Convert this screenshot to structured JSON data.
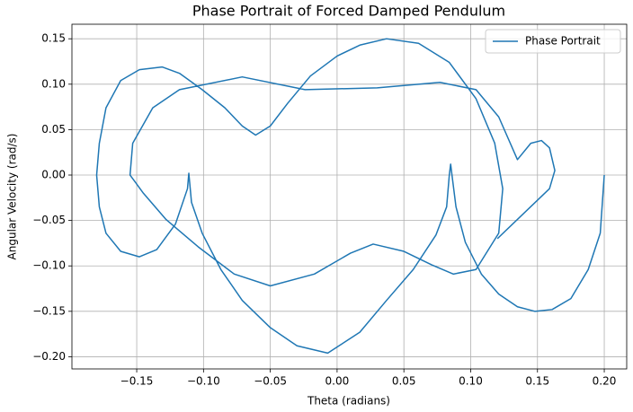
{
  "chart_data": {
    "type": "line",
    "title": "Phase Portrait of Forced Damped Pendulum",
    "x_label": "Theta (radians)",
    "y_label": "Angular Velocity (rad/s)",
    "xlim": [
      -0.1985,
      0.2168
    ],
    "ylim": [
      -0.2134,
      0.166
    ],
    "xticks": [
      {
        "value": -0.15,
        "label": "−0.15"
      },
      {
        "value": -0.1,
        "label": "−0.10"
      },
      {
        "value": -0.05,
        "label": "−0.05"
      },
      {
        "value": 0,
        "label": "0.00"
      },
      {
        "value": 0.05,
        "label": "0.05"
      },
      {
        "value": 0.1,
        "label": "0.10"
      },
      {
        "value": 0.15,
        "label": "0.15"
      },
      {
        "value": 0.2,
        "label": "0.20"
      }
    ],
    "yticks": [
      {
        "value": -0.2,
        "label": "−0.20"
      },
      {
        "value": -0.15,
        "label": "−0.15"
      },
      {
        "value": -0.1,
        "label": "−0.10"
      },
      {
        "value": -0.05,
        "label": "−0.05"
      },
      {
        "value": 0,
        "label": "0.00"
      },
      {
        "value": 0.05,
        "label": "0.05"
      },
      {
        "value": 0.1,
        "label": "0.10"
      },
      {
        "value": 0.15,
        "label": "0.15"
      }
    ],
    "grid": true,
    "legend": "upper right",
    "x": [
      0.2,
      0.197,
      0.188,
      0.175,
      0.161,
      0.148,
      0.135,
      0.121,
      0.108,
      0.096,
      0.089,
      0.086,
      0.085,
      0.084,
      0.082,
      0.074,
      0.057,
      0.037,
      0.017,
      -0.007,
      -0.03,
      -0.05,
      -0.071,
      -0.087,
      -0.101,
      -0.109,
      -0.111,
      -0.112,
      -0.121,
      -0.135,
      -0.148,
      -0.162,
      -0.173,
      -0.178,
      -0.18,
      -0.178,
      -0.173,
      -0.162,
      -0.148,
      -0.131,
      -0.118,
      -0.101,
      -0.084,
      -0.071,
      -0.061,
      -0.05,
      -0.037,
      -0.02,
      0.0,
      0.017,
      0.037,
      0.061,
      0.084,
      0.104,
      0.118,
      0.124,
      0.121,
      0.104,
      0.087,
      0.071,
      0.05,
      0.027,
      0.01,
      -0.017,
      -0.05,
      -0.077,
      -0.104,
      -0.128,
      -0.145,
      -0.151,
      -0.155,
      -0.153,
      -0.138,
      -0.118,
      -0.071,
      -0.024,
      0.03,
      0.077,
      0.104,
      0.121,
      0.135,
      0.145,
      0.153,
      0.159,
      0.163,
      0.159,
      0.12
    ],
    "series": [
      {
        "name": "Phase Portrait",
        "color": "#1f77b4",
        "values": [
          0.0,
          -0.064,
          -0.104,
          -0.136,
          -0.148,
          -0.15,
          -0.145,
          -0.131,
          -0.109,
          -0.074,
          -0.035,
          0.0,
          0.012,
          0.0,
          -0.035,
          -0.066,
          -0.104,
          -0.138,
          -0.173,
          -0.196,
          -0.188,
          -0.168,
          -0.138,
          -0.104,
          -0.064,
          -0.03,
          0.002,
          -0.015,
          -0.054,
          -0.082,
          -0.09,
          -0.084,
          -0.064,
          -0.035,
          0.0,
          0.035,
          0.074,
          0.104,
          0.116,
          0.119,
          0.112,
          0.094,
          0.074,
          0.054,
          0.044,
          0.054,
          0.079,
          0.109,
          0.131,
          0.143,
          0.15,
          0.145,
          0.124,
          0.084,
          0.035,
          -0.015,
          -0.064,
          -0.104,
          -0.109,
          -0.099,
          -0.084,
          -0.076,
          -0.086,
          -0.109,
          -0.122,
          -0.109,
          -0.079,
          -0.049,
          -0.02,
          -0.008,
          0.0,
          0.035,
          0.074,
          0.094,
          0.108,
          0.094,
          0.096,
          0.102,
          0.094,
          0.064,
          0.017,
          0.035,
          0.038,
          0.03,
          0.005,
          -0.015,
          -0.07
        ]
      }
    ]
  }
}
